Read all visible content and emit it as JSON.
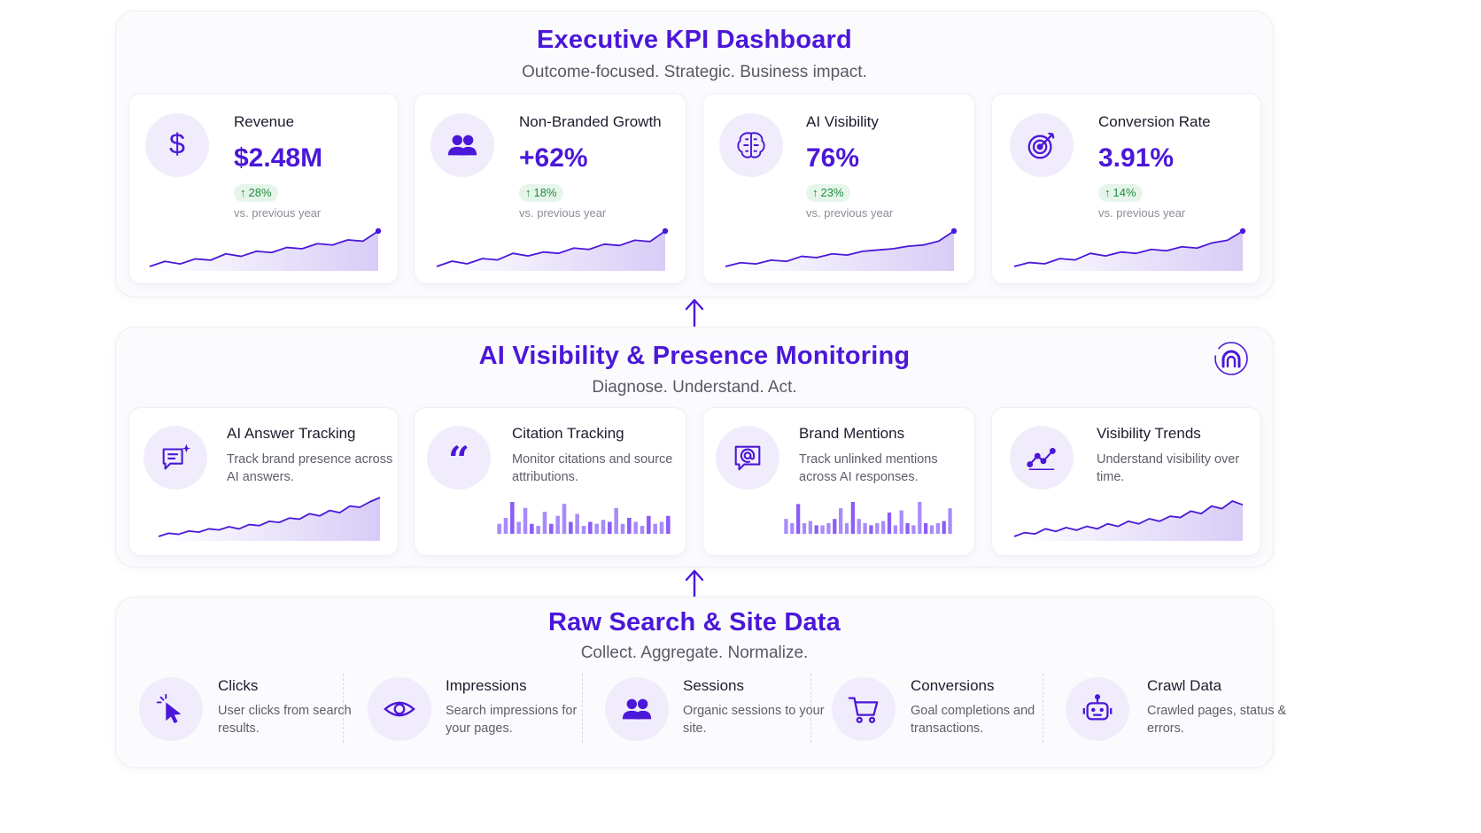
{
  "colors": {
    "accent": "#4b17d8",
    "positive": "#1f8a3d",
    "icon_bg": "#f0ecfb"
  },
  "kpi": {
    "title": "Executive KPI Dashboard",
    "subtitle": "Outcome-focused. Strategic. Business impact.",
    "cards": [
      {
        "label": "Revenue",
        "value": "$2.48M",
        "change": "28%",
        "compare": "vs. previous year",
        "icon": "dollar-icon",
        "trend": [
          10,
          14,
          12,
          16,
          15,
          20,
          18,
          22,
          21,
          25,
          24,
          28,
          27,
          31,
          30,
          38
        ]
      },
      {
        "label": "Non-Branded Growth",
        "value": "+62%",
        "change": "18%",
        "compare": "vs. previous year",
        "icon": "users-icon",
        "trend": [
          10,
          14,
          12,
          16,
          15,
          20,
          18,
          21,
          20,
          24,
          23,
          27,
          26,
          30,
          29,
          37
        ]
      },
      {
        "label": "AI Visibility",
        "value": "76%",
        "change": "23%",
        "compare": "vs. previous year",
        "icon": "brain-icon",
        "trend": [
          10,
          13,
          12,
          15,
          14,
          18,
          17,
          20,
          19,
          22,
          23,
          24,
          26,
          27,
          30,
          38
        ]
      },
      {
        "label": "Conversion Rate",
        "value": "3.91%",
        "change": "14%",
        "compare": "vs. previous year",
        "icon": "target-icon",
        "trend": [
          10,
          13,
          12,
          16,
          15,
          20,
          18,
          21,
          20,
          23,
          22,
          25,
          24,
          28,
          30,
          37
        ]
      }
    ]
  },
  "ai": {
    "title": "AI Visibility & Presence Monitoring",
    "subtitle": "Diagnose. Understand. Act.",
    "logo_icon": "brand-logo-icon",
    "cards": [
      {
        "label": "AI Answer Tracking",
        "desc": "Track brand presence across AI answers.",
        "icon": "chat-sparkle-icon",
        "chart": "line",
        "trend": [
          6,
          9,
          8,
          11,
          10,
          13,
          12,
          15,
          13,
          17,
          16,
          20,
          19,
          23,
          22,
          27,
          25,
          30,
          28,
          34,
          33,
          38,
          42
        ]
      },
      {
        "label": "Citation Tracking",
        "desc": "Monitor citations and source attributions.",
        "icon": "quote-icon",
        "chart": "bar",
        "bars": [
          10,
          16,
          32,
          12,
          26,
          10,
          8,
          22,
          10,
          18,
          30,
          12,
          20,
          8,
          12,
          10,
          14,
          12,
          26,
          10,
          16,
          12,
          8,
          18,
          10,
          12,
          18
        ]
      },
      {
        "label": "Brand Mentions",
        "desc": "Track unlinked mentions across AI responses.",
        "icon": "at-message-icon",
        "chart": "bar",
        "bars": [
          14,
          10,
          28,
          10,
          12,
          8,
          8,
          10,
          14,
          24,
          10,
          30,
          14,
          10,
          8,
          10,
          12,
          20,
          8,
          22,
          10,
          8,
          30,
          10,
          8,
          10,
          12,
          24
        ]
      },
      {
        "label": "Visibility Trends",
        "desc": "Understand visibility over time.",
        "icon": "trend-icon",
        "chart": "line",
        "trend": [
          6,
          9,
          8,
          12,
          10,
          13,
          11,
          14,
          12,
          16,
          14,
          18,
          16,
          20,
          18,
          22,
          21,
          26,
          24,
          30,
          28,
          34,
          31
        ]
      }
    ]
  },
  "raw": {
    "title": "Raw Search & Site Data",
    "subtitle": "Collect. Aggregate. Normalize.",
    "items": [
      {
        "label": "Clicks",
        "desc": "User clicks from search results.",
        "icon": "cursor-click-icon"
      },
      {
        "label": "Impressions",
        "desc": "Search impressions for your pages.",
        "icon": "eye-icon"
      },
      {
        "label": "Sessions",
        "desc": "Organic sessions to your site.",
        "icon": "users-icon"
      },
      {
        "label": "Conversions",
        "desc": "Goal completions and transactions.",
        "icon": "cart-icon"
      },
      {
        "label": "Crawl Data",
        "desc": "Crawled pages, status & errors.",
        "icon": "robot-icon"
      }
    ]
  }
}
